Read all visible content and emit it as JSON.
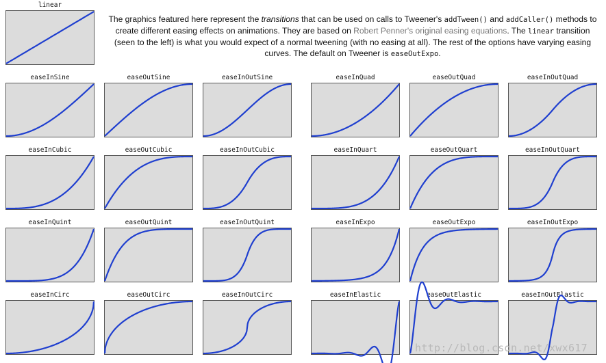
{
  "description": {
    "p1": "The graphics featured here represent the ",
    "em1": "transitions",
    "p2": " that can be used on calls to Tweener's ",
    "code1": "addTween()",
    "p3": " and ",
    "code2": "addCaller()",
    "p4": " methods to create different easing effects on animations. They are based on ",
    "link": "Robert Penner's original easing equations",
    "p5": ". The ",
    "code3": "linear",
    "p6": " transition (seen to the left) is what you would expect of a normal tweening (with no easing at all). The rest of the options have varying easing curves. The default on Tweener is ",
    "code4": "easeOutExpo",
    "p7": "."
  },
  "curve_color": "#1f3fcf",
  "plot_bg": "#dcdcdc",
  "transitions": [
    "linear",
    "easeInSine",
    "easeOutSine",
    "easeInOutSine",
    "easeInQuad",
    "easeOutQuad",
    "easeInOutQuad",
    "easeInCubic",
    "easeOutCubic",
    "easeInOutCubic",
    "easeInQuart",
    "easeOutQuart",
    "easeInOutQuart",
    "easeInQuint",
    "easeOutQuint",
    "easeInOutQuint",
    "easeInExpo",
    "easeOutExpo",
    "easeInOutExpo",
    "easeInCirc",
    "easeOutCirc",
    "easeInOutCirc",
    "easeInElastic",
    "easeOutElastic",
    "easeInOutElastic"
  ],
  "watermark": "http://blog.csdn.net/xwx617"
}
